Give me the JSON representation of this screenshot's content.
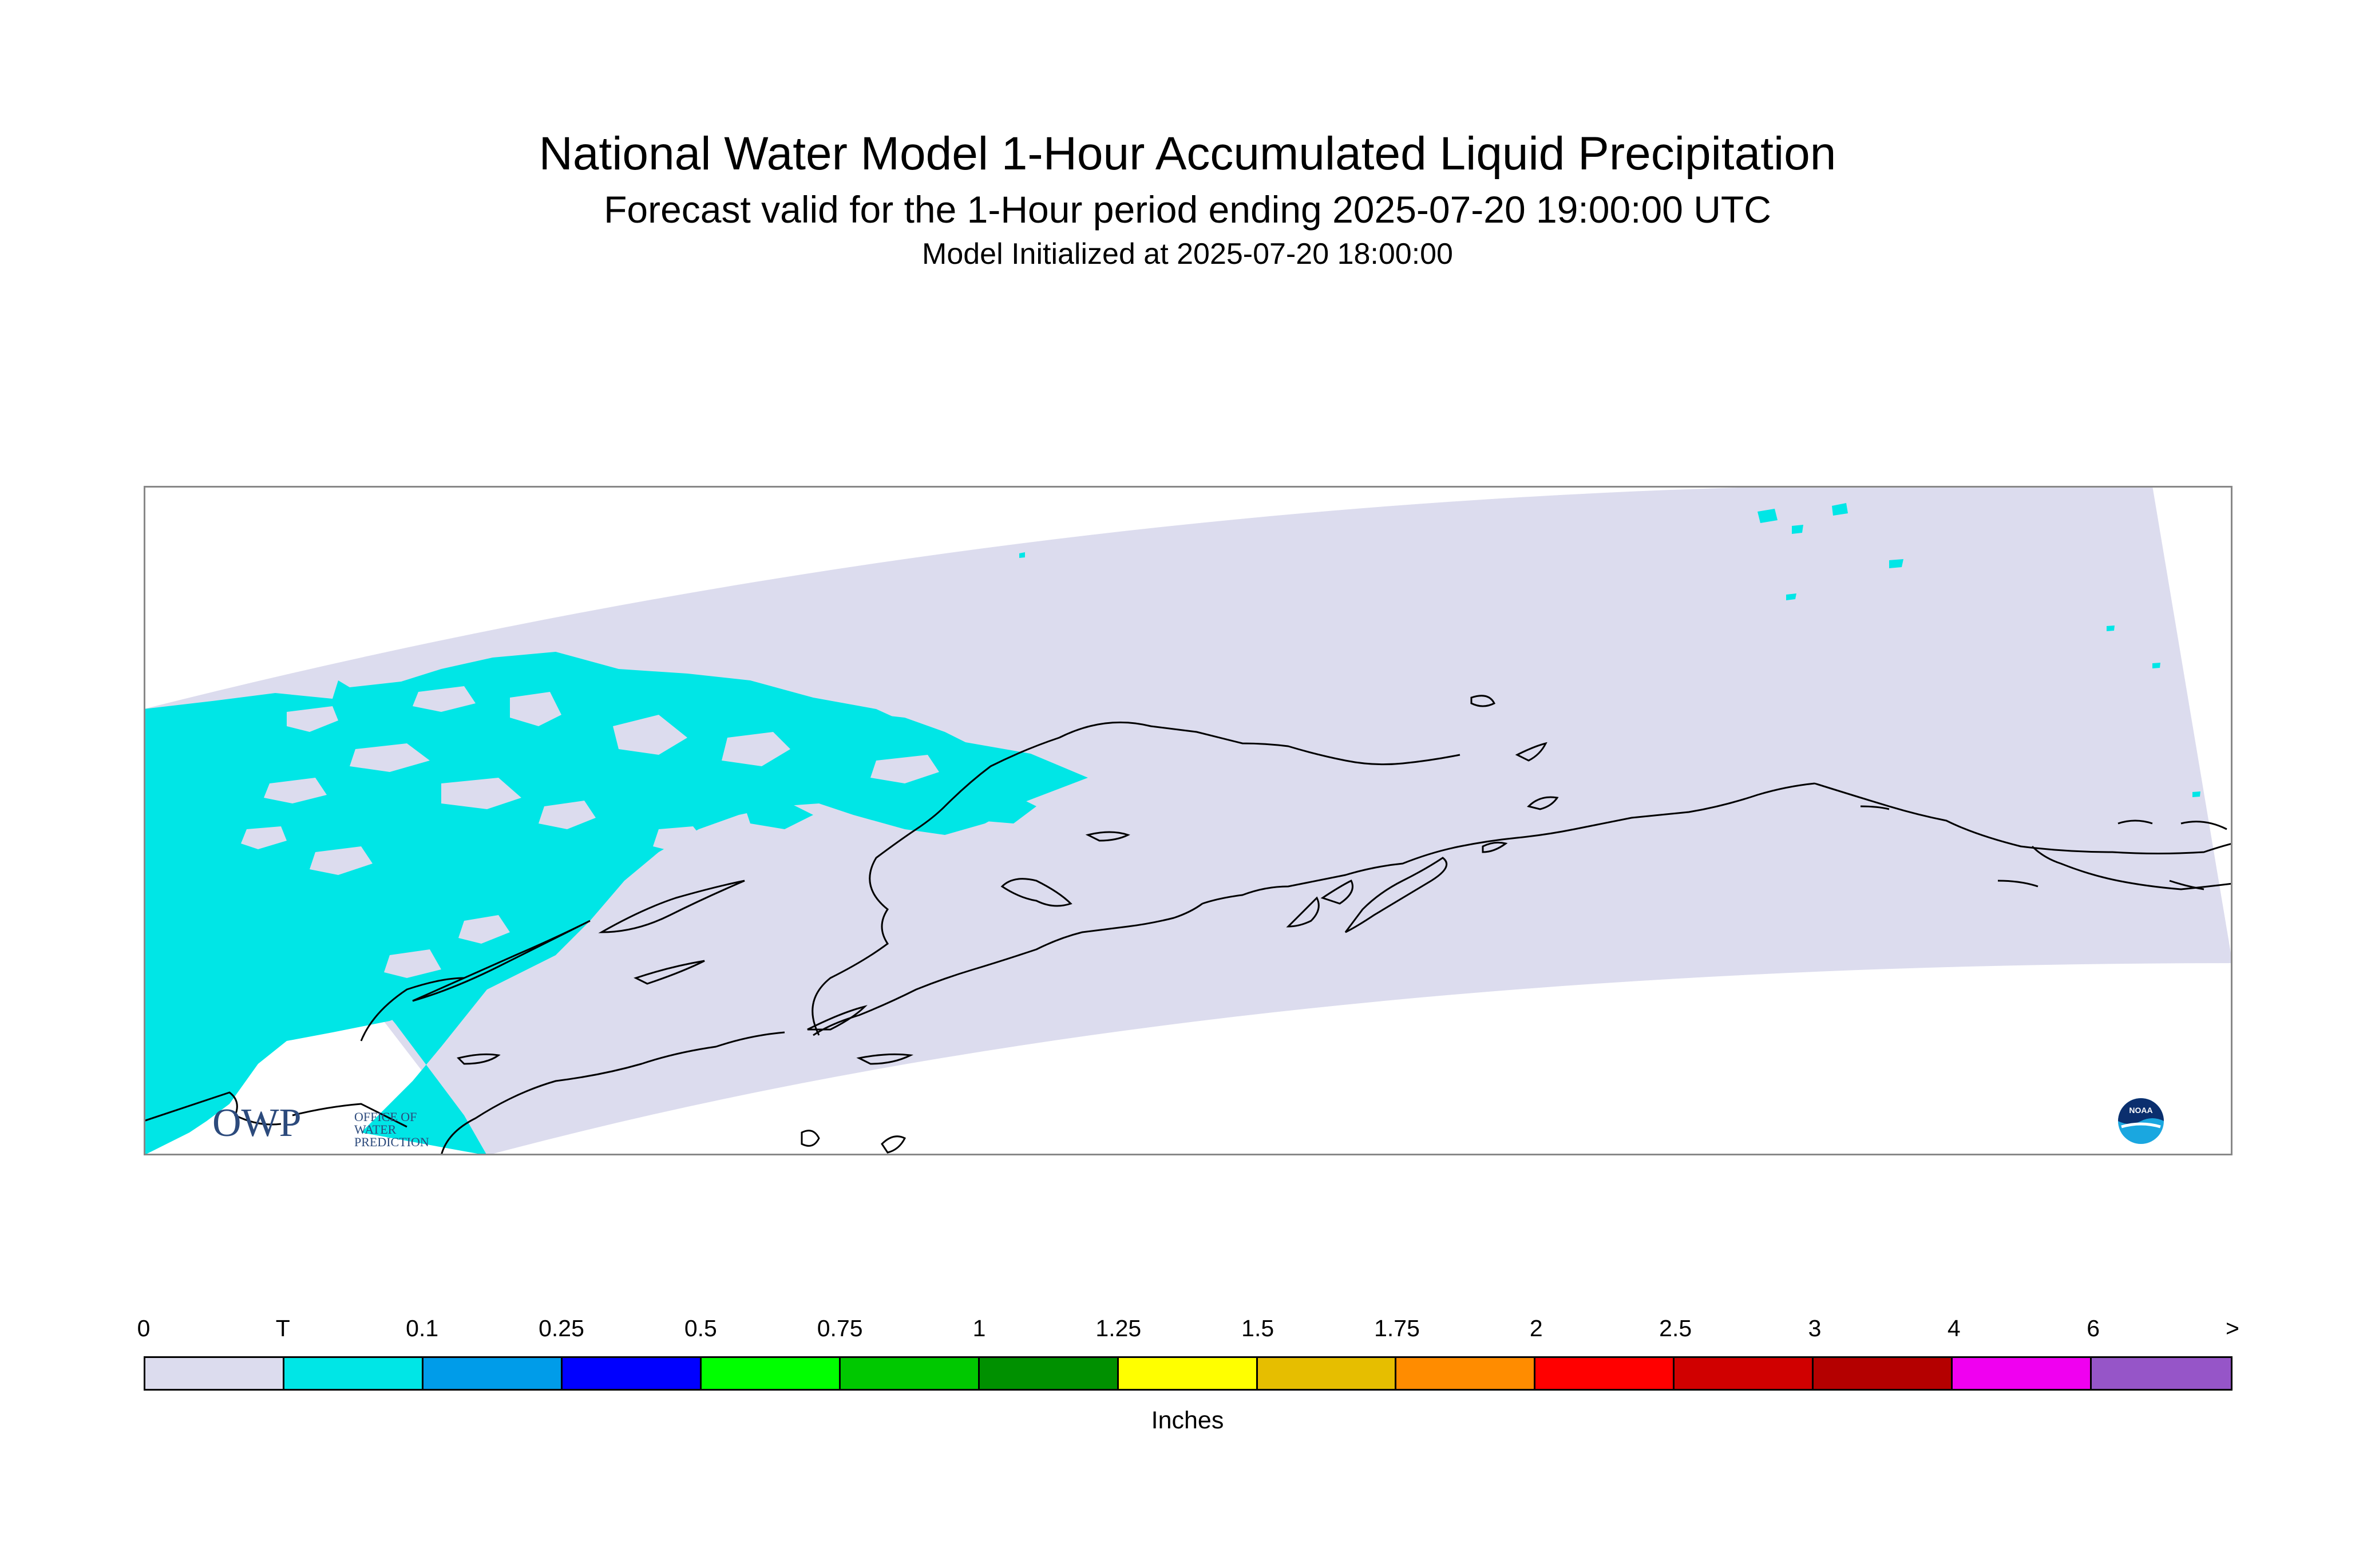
{
  "title": "National Water Model 1-Hour Accumulated Liquid Precipitation",
  "subtitle": "Forecast valid for the 1-Hour period ending 2025-07-20 19:00:00 UTC",
  "init_line": "Model Initialized at 2025-07-20 18:00:00",
  "logos": {
    "owp_mark": "OWP",
    "owp_text": [
      "OFFICE OF",
      "WATER",
      "PREDICTION"
    ],
    "noaa_text": "NOAA"
  },
  "colors": {
    "model_domain": "#dcdcee",
    "precip_trace": "#00e6e6",
    "coastline": "#000000"
  },
  "legend": {
    "labels": [
      "0",
      "T",
      "0.1",
      "0.25",
      "0.5",
      "0.75",
      "1",
      "1.25",
      "1.5",
      "1.75",
      "2",
      "2.5",
      "3",
      "4",
      "6",
      ">"
    ],
    "colors": [
      "#dcdcee",
      "#00e6e6",
      "#009ce9",
      "#0000ff",
      "#00ff00",
      "#00c800",
      "#009000",
      "#ffff00",
      "#e6be00",
      "#ff8c00",
      "#ff0000",
      "#d00000",
      "#b40000",
      "#f000f0",
      "#9655c8"
    ],
    "units": "Inches"
  }
}
